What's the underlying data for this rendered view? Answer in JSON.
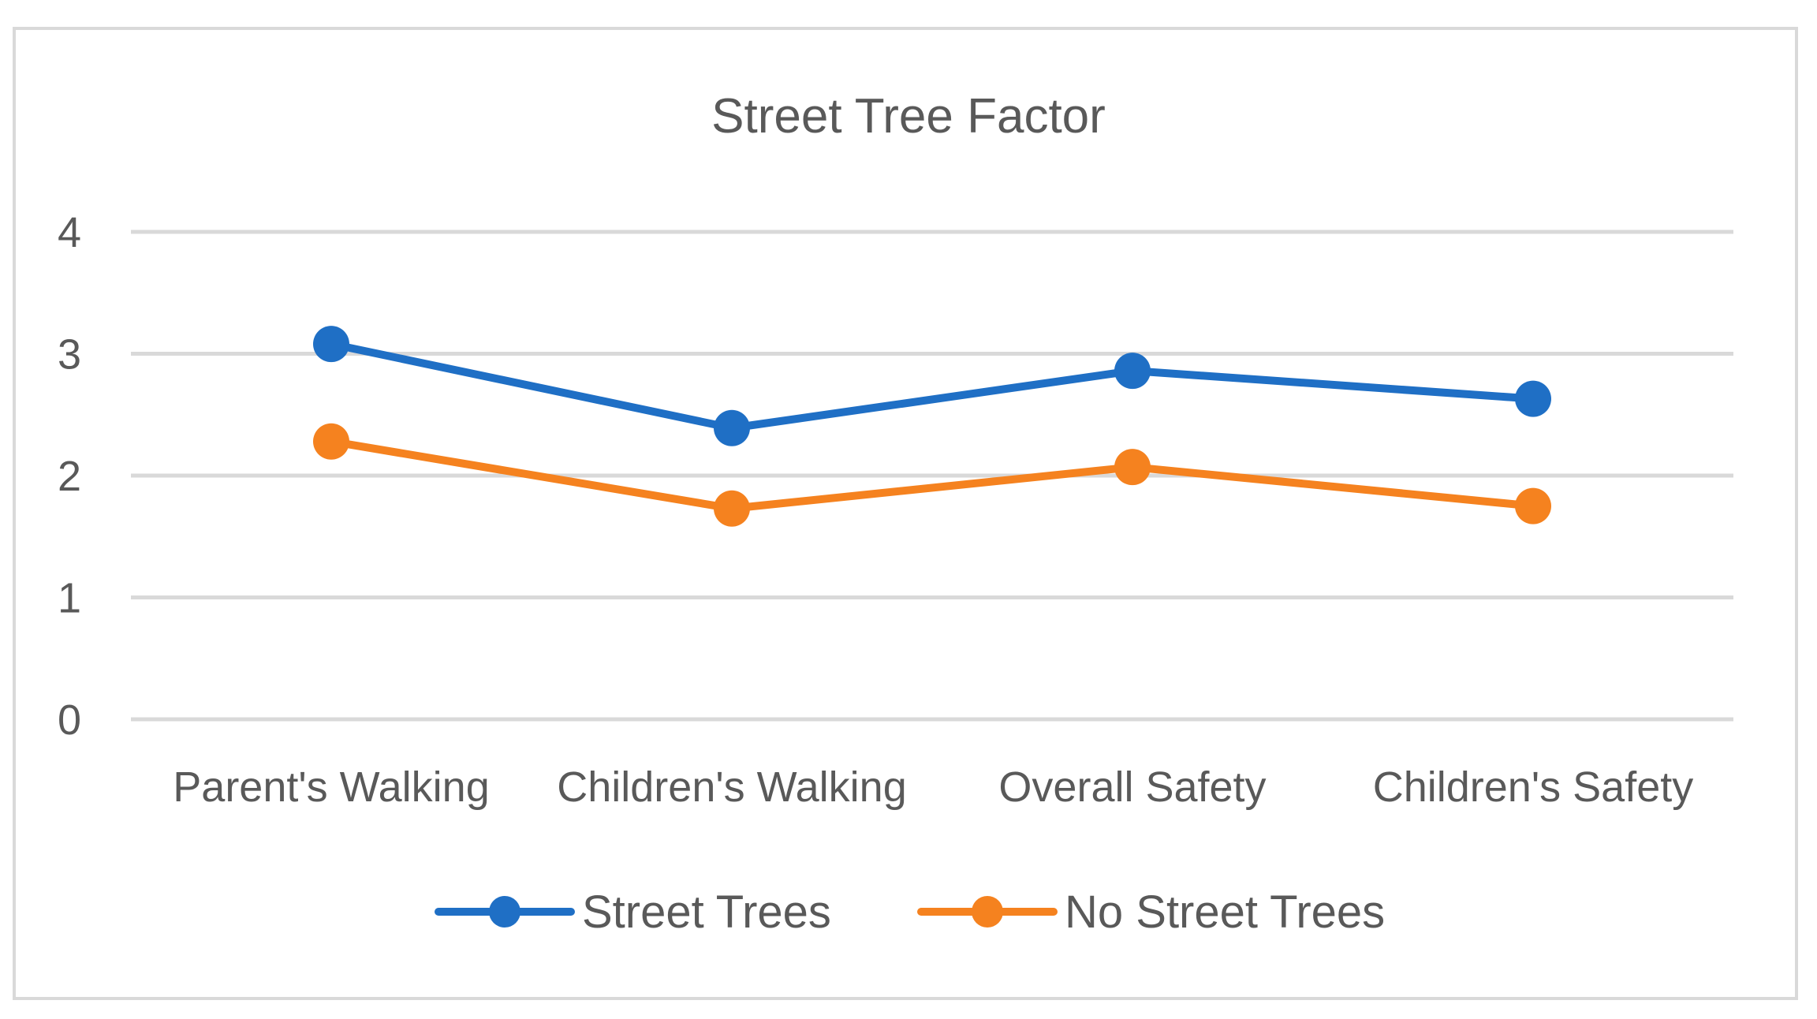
{
  "chart_data": {
    "type": "line",
    "title": "Street Tree Factor",
    "categories": [
      "Parent's Walking",
      "Children's Walking",
      "Overall Safety",
      "Children's Safety"
    ],
    "series": [
      {
        "name": "Street Trees",
        "values": [
          3.08,
          2.39,
          2.86,
          2.63
        ],
        "color": "#1f6fc5"
      },
      {
        "name": "No Street Trees",
        "values": [
          2.28,
          1.73,
          2.07,
          1.75
        ],
        "color": "#f5821f"
      }
    ],
    "ylim": [
      0,
      4
    ],
    "yticks": [
      "0",
      "1",
      "2",
      "3",
      "4"
    ],
    "xlabel": "",
    "ylabel": "",
    "grid": true,
    "legend": "bottom-center",
    "gridColor": "#d9d9d9",
    "textColor": "#595959"
  }
}
